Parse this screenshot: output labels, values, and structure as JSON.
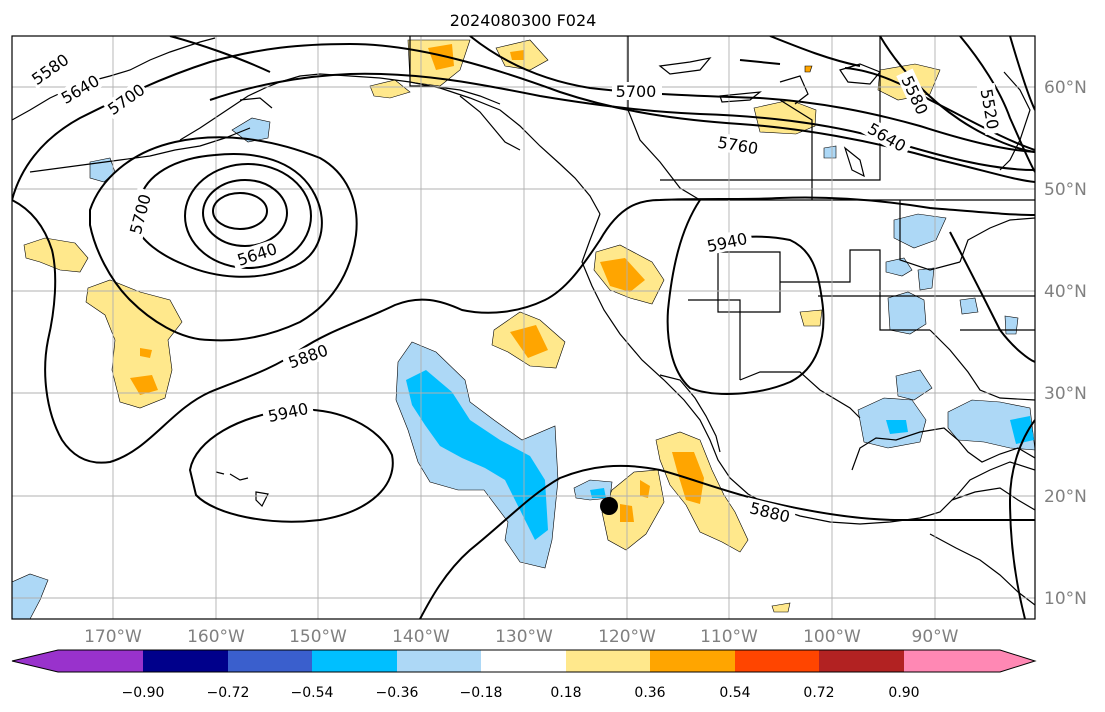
{
  "title": "2024080300 F024",
  "map": {
    "lon_ticks": [
      "170°W",
      "160°W",
      "150°W",
      "140°W",
      "130°W",
      "120°W",
      "110°W",
      "100°W",
      "90°W"
    ],
    "lat_ticks": [
      "60°N",
      "50°N",
      "40°N",
      "30°N",
      "20°N",
      "10°N"
    ],
    "contours": {
      "height_labels": [
        "5580",
        "5640",
        "5700",
        "5700",
        "5760",
        "5640",
        "5580",
        "5520",
        "5640",
        "5700",
        "5880",
        "5940",
        "5940",
        "5880"
      ]
    },
    "marker": "black-dot",
    "colors": {
      "line": "#000000",
      "coast": "#000000",
      "grid": "#b0b0b0"
    }
  },
  "colorbar": {
    "ticks": [
      "−0.90",
      "−0.72",
      "−0.54",
      "−0.36",
      "−0.18",
      "0.18",
      "0.36",
      "0.54",
      "0.72",
      "0.90"
    ],
    "colors": [
      "#9932cc",
      "#00008b",
      "#3a5fcd",
      "#00bfff",
      "#add8f6",
      "#ffffff",
      "#ffe88c",
      "#ffa500",
      "#ff4500",
      "#b22222",
      "#ff88b4"
    ]
  }
}
